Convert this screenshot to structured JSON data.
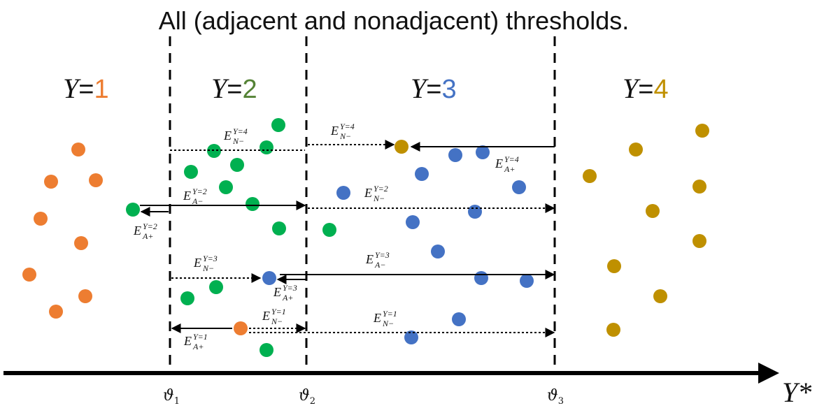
{
  "title": "All (adjacent and nonadjacent) thresholds.",
  "axis_label": "Y*",
  "colors": {
    "class_1": "#ED7D31",
    "class_2": "#00B050",
    "class_3": "#4472C4",
    "class_4": "#BF9000",
    "class_2_text": "#548235",
    "class_4_text": "#C09000"
  },
  "classes": [
    {
      "letter": "Y",
      "eq": "=",
      "num": "1",
      "color_key": "class_1"
    },
    {
      "letter": "Y",
      "eq": "=",
      "num": "2",
      "color_key": "class_2_text"
    },
    {
      "letter": "Y",
      "eq": "=",
      "num": "3",
      "color_key": "class_3"
    },
    {
      "letter": "Y",
      "eq": "=",
      "num": "4",
      "color_key": "class_4_text"
    }
  ],
  "thresholds": [
    {
      "symbol": "ϑ",
      "sub": "1"
    },
    {
      "symbol": "ϑ",
      "sub": "2"
    },
    {
      "symbol": "ϑ",
      "sub": "3"
    }
  ],
  "labels": [
    {
      "id": "lbl-n-4-left",
      "main": "E",
      "sup": "Y=4",
      "sub": "N−"
    },
    {
      "id": "lbl-n-4-right",
      "main": "E",
      "sup": "Y=4",
      "sub": "N−"
    },
    {
      "id": "lbl-a-4",
      "main": "E",
      "sup": "Y=4",
      "sub": "A+"
    },
    {
      "id": "lbl-a-2-minus",
      "main": "E",
      "sup": "Y=2",
      "sub": "A−"
    },
    {
      "id": "lbl-n-2",
      "main": "E",
      "sup": "Y=2",
      "sub": "N−"
    },
    {
      "id": "lbl-a-2-plus",
      "main": "E",
      "sup": "Y=2",
      "sub": "A+"
    },
    {
      "id": "lbl-n-3",
      "main": "E",
      "sup": "Y=3",
      "sub": "N−"
    },
    {
      "id": "lbl-a-3-minus",
      "main": "E",
      "sup": "Y=3",
      "sub": "A−"
    },
    {
      "id": "lbl-a-3-plus",
      "main": "E",
      "sup": "Y=3",
      "sub": "A+"
    },
    {
      "id": "lbl-n-1-mid",
      "main": "E",
      "sup": "Y=1",
      "sub": "N−"
    },
    {
      "id": "lbl-n-1-right",
      "main": "E",
      "sup": "Y=1",
      "sub": "N−"
    },
    {
      "id": "lbl-a-1",
      "main": "E",
      "sup": "Y=1",
      "sub": "A+"
    }
  ]
}
